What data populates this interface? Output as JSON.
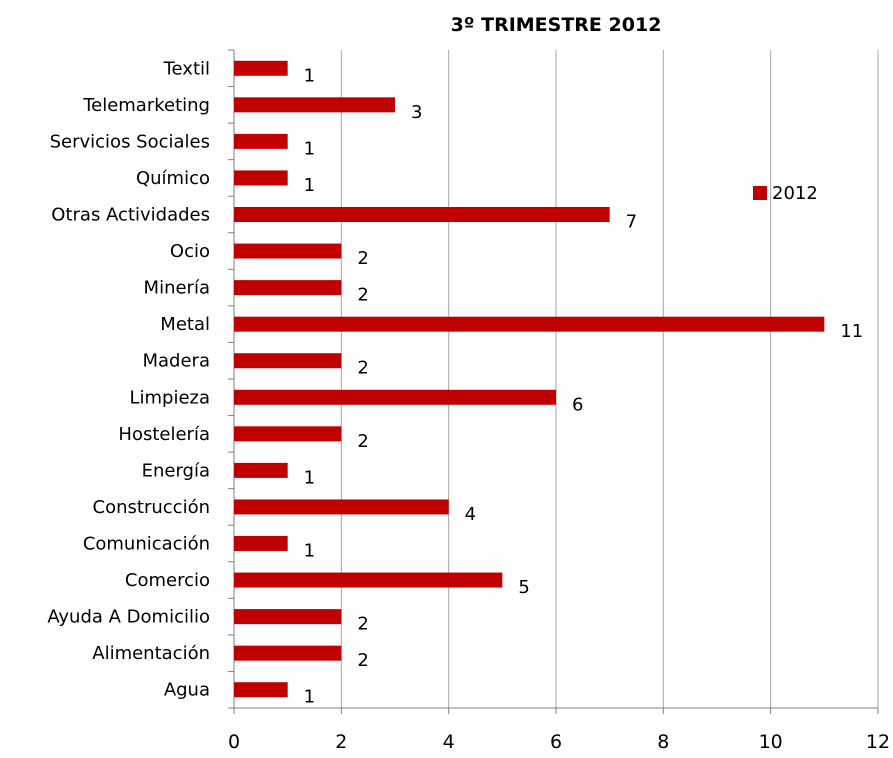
{
  "chart_data": {
    "type": "bar",
    "orientation": "horizontal",
    "title": "3º TRIMESTRE 2012",
    "categories": [
      "Agua",
      "Alimentación",
      "Ayuda A Domicilio",
      "Comercio",
      "Comunicación",
      "Construcción",
      "Energía",
      "Hostelería",
      "Limpieza",
      "Madera",
      "Metal",
      "Minería",
      "Ocio",
      "Otras Actividades",
      "Químico",
      "Servicios Sociales",
      "Telemarketing",
      "Textil"
    ],
    "series": [
      {
        "name": "2012",
        "values": [
          1,
          2,
          2,
          5,
          1,
          4,
          1,
          2,
          6,
          2,
          11,
          2,
          2,
          7,
          1,
          1,
          3,
          1
        ]
      }
    ],
    "xlim": [
      0,
      12
    ],
    "x_ticks": [
      0,
      2,
      4,
      6,
      8,
      10,
      12
    ],
    "grid": "vertical",
    "legend_position": "right",
    "colors": {
      "bar": "#c00000",
      "grid": "#a6a6a6",
      "axis": "#7f7f7f"
    },
    "data_labels": true
  }
}
